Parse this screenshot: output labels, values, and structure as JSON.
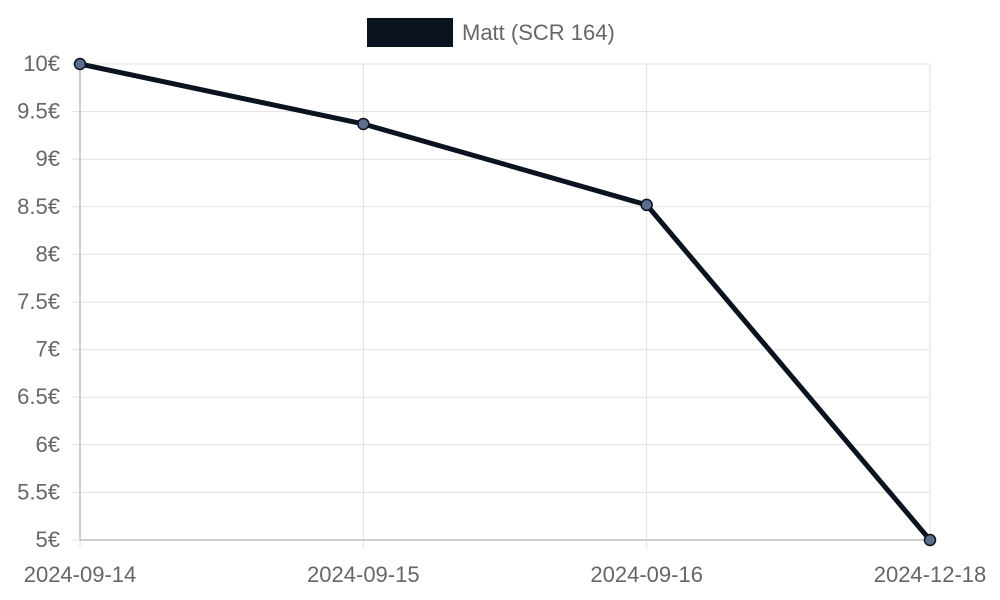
{
  "chart_data": {
    "type": "line",
    "categories": [
      "2024-09-14",
      "2024-09-15",
      "2024-09-16",
      "2024-12-18"
    ],
    "series": [
      {
        "name": "Matt (SCR 164)",
        "values": [
          10.0,
          9.37,
          8.52,
          5.0
        ]
      }
    ],
    "ylim": [
      5,
      10
    ],
    "y_ticks": [
      5,
      5.5,
      6,
      6.5,
      7,
      7.5,
      8,
      8.5,
      9,
      9.5,
      10
    ],
    "y_tick_suffix": "€",
    "grid": true,
    "legend_position": "top-center",
    "colors": {
      "series_line": "#0b1220",
      "point_fill": "#5b6f8c",
      "grid": "#e1e1e1",
      "axis": "#bdbdbd",
      "text": "#666666"
    }
  }
}
